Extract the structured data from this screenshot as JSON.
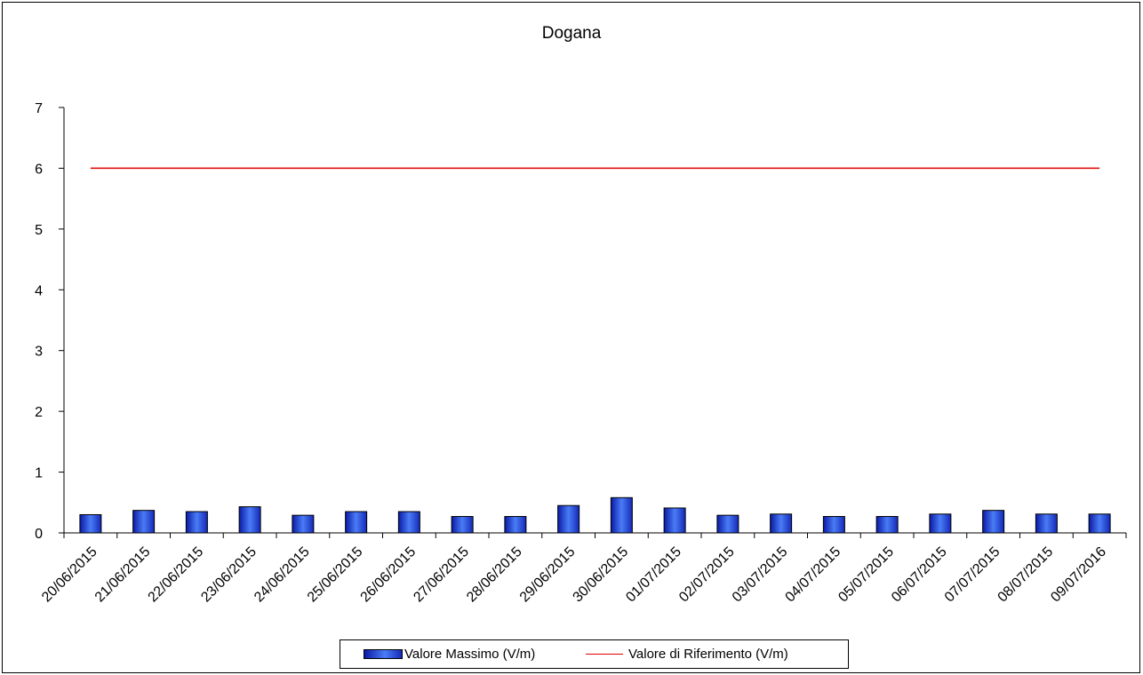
{
  "chart_data": {
    "type": "bar",
    "title": "Dogana",
    "xlabel": "",
    "ylabel": "",
    "ylim": [
      0,
      7
    ],
    "yticks": [
      "0",
      "1",
      "2",
      "3",
      "4",
      "5",
      "6",
      "7"
    ],
    "grid": false,
    "legend_position": "bottom",
    "categories": [
      "20/06/2015",
      "21/06/2015",
      "22/06/2015",
      "23/06/2015",
      "24/06/2015",
      "25/06/2015",
      "26/06/2015",
      "27/06/2015",
      "28/06/2015",
      "29/06/2015",
      "30/06/2015",
      "01/07/2015",
      "02/07/2015",
      "03/07/2015",
      "04/07/2015",
      "05/07/2015",
      "06/07/2015",
      "07/07/2015",
      "08/07/2015",
      "09/07/2016"
    ],
    "series": [
      {
        "name": "Valore Massimo (V/m)",
        "type": "bar",
        "color": "#2f5ef0",
        "values": [
          0.3,
          0.37,
          0.35,
          0.43,
          0.29,
          0.35,
          0.35,
          0.27,
          0.27,
          0.45,
          0.58,
          0.41,
          0.29,
          0.31,
          0.27,
          0.27,
          0.31,
          0.37,
          0.31,
          0.31
        ]
      },
      {
        "name": "Valore di Riferimento (V/m)",
        "type": "line",
        "color": "#e00000",
        "values": [
          6,
          6,
          6,
          6,
          6,
          6,
          6,
          6,
          6,
          6,
          6,
          6,
          6,
          6,
          6,
          6,
          6,
          6,
          6,
          6
        ]
      }
    ]
  }
}
